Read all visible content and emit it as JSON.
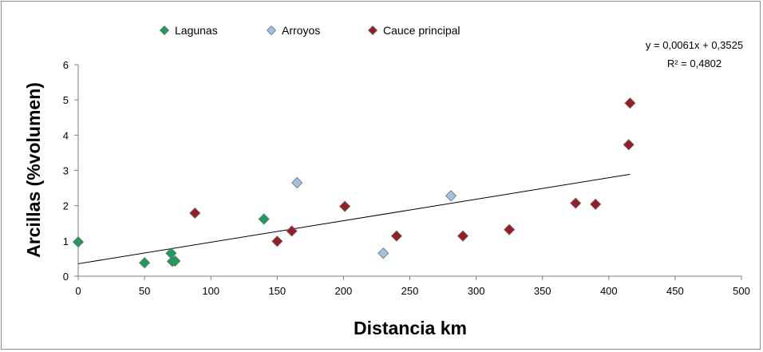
{
  "chart_data": {
    "type": "scatter",
    "xlabel": "Distancia km",
    "ylabel": "Arcillas (%volumen)",
    "xlim": [
      0,
      500
    ],
    "ylim": [
      0,
      6
    ],
    "xticks": [
      "0",
      "50",
      "100",
      "150",
      "200",
      "250",
      "300",
      "350",
      "400",
      "450",
      "500"
    ],
    "yticks": [
      "0",
      "1",
      "2",
      "3",
      "4",
      "5",
      "6"
    ],
    "grid": false,
    "legend_position": "top",
    "series": [
      {
        "name": "Lagunas",
        "color": "#1a9e5c",
        "marker": "diamond",
        "points": [
          [
            0,
            0.97
          ],
          [
            50,
            0.38
          ],
          [
            70,
            0.65
          ],
          [
            71,
            0.42
          ],
          [
            73,
            0.43
          ],
          [
            140,
            1.62
          ]
        ]
      },
      {
        "name": "Arroyos",
        "color": "#9dc3e6",
        "marker": "diamond",
        "points": [
          [
            165,
            2.65
          ],
          [
            230,
            0.65
          ],
          [
            281,
            2.28
          ]
        ]
      },
      {
        "name": "Cauce principal",
        "color": "#9b1b22",
        "marker": "diamond",
        "points": [
          [
            88,
            1.79
          ],
          [
            150,
            0.99
          ],
          [
            161,
            1.28
          ],
          [
            201,
            1.98
          ],
          [
            240,
            1.14
          ],
          [
            290,
            1.14
          ],
          [
            325,
            1.32
          ],
          [
            375,
            2.07
          ],
          [
            390,
            2.04
          ],
          [
            415,
            3.73
          ],
          [
            416,
            4.91
          ]
        ]
      }
    ],
    "trendline": {
      "type": "linear",
      "slope": 0.0061,
      "intercept": 0.3525,
      "x_range": [
        0,
        416
      ],
      "equation": "y = 0,0061x + 0,3525",
      "r2": "R² = 0,4802"
    }
  }
}
